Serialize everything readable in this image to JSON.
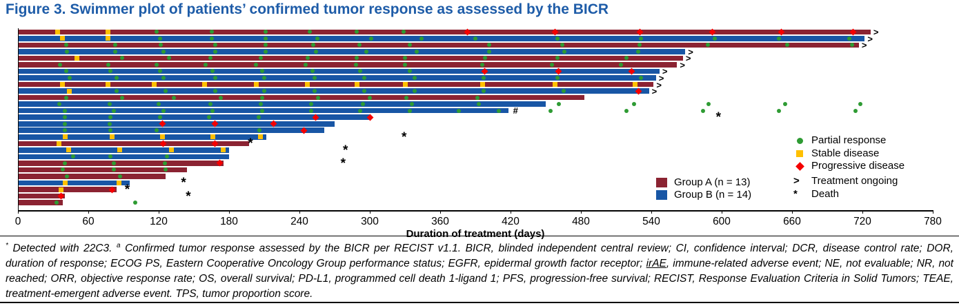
{
  "figure": {
    "title": "Figure 3. Swimmer plot of patients’ confirmed tumor response as assessed by the BICR",
    "title_color": "#1E5CA8"
  },
  "chart_data": {
    "type": "swimmer",
    "xlabel": "Duration of treatment (days)",
    "xlim": [
      0,
      780
    ],
    "xticks": [
      0,
      60,
      120,
      180,
      240,
      300,
      360,
      420,
      480,
      540,
      600,
      660,
      720,
      780
    ],
    "x_unit": "days",
    "marker_legend": [
      {
        "key": "pr",
        "label": "Partial response",
        "color": "#2E9B33",
        "shape": "circle"
      },
      {
        "key": "sd",
        "label": "Stable disease",
        "color": "#FFC000",
        "shape": "square"
      },
      {
        "key": "pd",
        "label": "Progressive disease",
        "color": "#F40000",
        "shape": "diamond"
      },
      {
        "key": "ongoing",
        "label": "Treatment ongoing",
        "glyph": ">"
      },
      {
        "key": "death",
        "label": "Death",
        "glyph": "*"
      }
    ],
    "group_legend": [
      {
        "key": "A",
        "label": "Group A (n = 13)",
        "color": "#8B2332"
      },
      {
        "key": "B",
        "label": "Group B (n = 14)",
        "color": "#1856A5"
      }
    ],
    "patients": [
      {
        "group": "A",
        "duration_days": 727,
        "ongoing": true,
        "markers": [
          [
            "sd",
            34
          ],
          [
            "sd",
            77
          ],
          [
            "pr",
            118
          ],
          [
            "pr",
            165
          ],
          [
            "pr",
            211
          ],
          [
            "pr",
            249
          ],
          [
            "pr",
            289
          ],
          [
            "pr",
            329
          ],
          [
            "pd",
            383
          ],
          [
            "pd",
            458
          ],
          [
            "pd",
            530
          ],
          [
            "pd",
            592
          ],
          [
            "pd",
            651
          ],
          [
            "pd",
            712
          ]
        ]
      },
      {
        "group": "B",
        "duration_days": 722,
        "ongoing": true,
        "markers": [
          [
            "sd",
            38
          ],
          [
            "sd",
            77
          ],
          [
            "pr",
            121
          ],
          [
            "pr",
            165
          ],
          [
            "pr",
            211
          ],
          [
            "pr",
            255
          ],
          [
            "pr",
            301
          ],
          [
            "pr",
            344
          ],
          [
            "pr",
            390
          ],
          [
            "pr",
            460
          ],
          [
            "pr",
            531
          ],
          [
            "pr",
            594
          ],
          [
            "pr",
            649
          ],
          [
            "pr",
            709
          ]
        ]
      },
      {
        "group": "A",
        "duration_days": 717,
        "ongoing": true,
        "markers": [
          [
            "pr",
            41
          ],
          [
            "pr",
            83
          ],
          [
            "pr",
            122
          ],
          [
            "pr",
            168
          ],
          [
            "pr",
            211
          ],
          [
            "pr",
            252
          ],
          [
            "pr",
            291
          ],
          [
            "pr",
            334
          ],
          [
            "pr",
            402
          ],
          [
            "pr",
            464
          ],
          [
            "pr",
            530
          ],
          [
            "pr",
            588
          ],
          [
            "pr",
            656
          ],
          [
            "pr",
            711
          ]
        ]
      },
      {
        "group": "B",
        "duration_days": 569,
        "ongoing": true,
        "markers": [
          [
            "pr",
            42
          ],
          [
            "pr",
            83
          ],
          [
            "pr",
            124
          ],
          [
            "pr",
            168
          ],
          [
            "pr",
            211
          ],
          [
            "pr",
            254
          ],
          [
            "pr",
            297
          ],
          [
            "pr",
            340
          ],
          [
            "pr",
            402
          ],
          [
            "pr",
            466
          ],
          [
            "pr",
            529
          ]
        ]
      },
      {
        "group": "A",
        "duration_days": 567,
        "ongoing": true,
        "markers": [
          [
            "sd",
            50
          ],
          [
            "pr",
            89
          ],
          [
            "pr",
            129
          ],
          [
            "pr",
            164
          ],
          [
            "pr",
            207
          ],
          [
            "pr",
            247
          ],
          [
            "pr",
            289
          ],
          [
            "pr",
            330
          ],
          [
            "pr",
            398
          ],
          [
            "pr",
            460
          ],
          [
            "pr",
            519
          ]
        ]
      },
      {
        "group": "A",
        "duration_days": 562,
        "ongoing": true,
        "markers": [
          [
            "pr",
            36
          ],
          [
            "pr",
            77
          ],
          [
            "pr",
            118
          ],
          [
            "pr",
            160
          ],
          [
            "pr",
            203
          ],
          [
            "pr",
            245
          ],
          [
            "pr",
            288
          ],
          [
            "pr",
            330
          ],
          [
            "pr",
            396
          ],
          [
            "pr",
            455
          ],
          [
            "pr",
            514
          ]
        ]
      },
      {
        "group": "B",
        "duration_days": 547,
        "ongoing": true,
        "markers": [
          [
            "pr",
            41
          ],
          [
            "pr",
            79
          ],
          [
            "pr",
            121
          ],
          [
            "pr",
            166
          ],
          [
            "pr",
            208
          ],
          [
            "pr",
            251
          ],
          [
            "pr",
            292
          ],
          [
            "pr",
            334
          ],
          [
            "pd",
            398
          ],
          [
            "pd",
            461
          ],
          [
            "pd",
            523
          ]
        ]
      },
      {
        "group": "B",
        "duration_days": 544,
        "ongoing": true,
        "markers": [
          [
            "pr",
            44
          ],
          [
            "pr",
            84
          ],
          [
            "pr",
            124
          ],
          [
            "pr",
            168
          ],
          [
            "pr",
            210
          ],
          [
            "pr",
            253
          ],
          [
            "pr",
            295
          ],
          [
            "pr",
            338
          ],
          [
            "pr",
            397
          ],
          [
            "pr",
            460
          ],
          [
            "pr",
            531
          ]
        ]
      },
      {
        "group": "A",
        "duration_days": 542,
        "ongoing": true,
        "markers": [
          [
            "sd",
            38
          ],
          [
            "sd",
            77
          ],
          [
            "sd",
            116
          ],
          [
            "sd",
            159
          ],
          [
            "sd",
            203
          ],
          [
            "sd",
            247
          ],
          [
            "sd",
            289
          ],
          [
            "sd",
            330
          ],
          [
            "sd",
            396
          ],
          [
            "sd",
            458
          ],
          [
            "sd",
            526
          ]
        ]
      },
      {
        "group": "B",
        "duration_days": 538,
        "ongoing": true,
        "markers": [
          [
            "sd",
            44
          ],
          [
            "pr",
            84
          ],
          [
            "pr",
            126
          ],
          [
            "pr",
            168
          ],
          [
            "pr",
            210
          ],
          [
            "pr",
            253
          ],
          [
            "pr",
            295
          ],
          [
            "pr",
            338
          ],
          [
            "pr",
            397
          ],
          [
            "pr",
            465
          ],
          [
            "pd",
            529
          ]
        ]
      },
      {
        "group": "A",
        "duration_days": 483,
        "ongoing": false,
        "markers": [
          [
            "pr",
            41
          ],
          [
            "pr",
            89
          ],
          [
            "pr",
            133
          ],
          [
            "pr",
            173
          ],
          [
            "pr",
            208
          ],
          [
            "pr",
            256
          ],
          [
            "pr",
            300
          ],
          [
            "pr",
            331
          ],
          [
            "pr",
            392
          ]
        ]
      },
      {
        "group": "B",
        "duration_days": 450,
        "ongoing": false,
        "markers": [
          [
            "pr",
            35
          ],
          [
            "pr",
            78
          ],
          [
            "pr",
            120
          ],
          [
            "pr",
            164
          ],
          [
            "pr",
            207
          ],
          [
            "pr",
            250
          ],
          [
            "pr",
            294
          ],
          [
            "pr",
            336
          ],
          [
            "pr",
            393
          ],
          [
            "pr",
            461
          ],
          [
            "pr",
            525
          ],
          [
            "pr",
            589
          ],
          [
            "pr",
            654
          ],
          [
            "pr",
            718
          ]
        ]
      },
      {
        "group": "B",
        "duration_days": 418,
        "ongoing": false,
        "hash": true,
        "markers": [
          [
            "pr",
            40
          ],
          [
            "pr",
            82
          ],
          [
            "pr",
            124
          ],
          [
            "pr",
            166
          ],
          [
            "pr",
            208
          ],
          [
            "pr",
            250
          ],
          [
            "pr",
            292
          ],
          [
            "pr",
            334
          ],
          [
            "pr",
            376
          ],
          [
            "pr",
            410
          ],
          [
            "pr",
            454
          ],
          [
            "pr",
            519
          ],
          [
            "pr",
            584
          ],
          [
            "pr",
            649
          ],
          [
            "pr",
            714
          ]
        ]
      },
      {
        "group": "B",
        "duration_days": 300,
        "ongoing": false,
        "markers": [
          [
            "pr",
            40
          ],
          [
            "pr",
            79
          ],
          [
            "pr",
            121
          ],
          [
            "pr",
            163
          ],
          [
            "pr",
            205
          ],
          [
            "pd",
            254
          ],
          [
            "pd",
            300
          ],
          [
            "death",
            598
          ]
        ]
      },
      {
        "group": "B",
        "duration_days": 270,
        "ongoing": false,
        "markers": [
          [
            "pr",
            40
          ],
          [
            "pr",
            78
          ],
          [
            "pd",
            123
          ],
          [
            "pd",
            168
          ],
          [
            "pd",
            218
          ]
        ]
      },
      {
        "group": "B",
        "duration_days": 261,
        "ongoing": false,
        "markers": [
          [
            "pr",
            40
          ],
          [
            "pr",
            79
          ],
          [
            "pr",
            118
          ],
          [
            "pr",
            206
          ],
          [
            "pd",
            244
          ]
        ]
      },
      {
        "group": "B",
        "duration_days": 212,
        "ongoing": false,
        "markers": [
          [
            "sd",
            40
          ],
          [
            "sd",
            80
          ],
          [
            "sd",
            123
          ],
          [
            "sd",
            166
          ],
          [
            "sd",
            207
          ],
          [
            "death",
            330
          ]
        ]
      },
      {
        "group": "A",
        "duration_days": 197,
        "ongoing": false,
        "markers": [
          [
            "sd",
            35
          ],
          [
            "pd",
            124
          ],
          [
            "pd",
            168
          ],
          [
            "death",
            199
          ]
        ]
      },
      {
        "group": "B",
        "duration_days": 180,
        "ongoing": false,
        "markers": [
          [
            "sd",
            43
          ],
          [
            "sd",
            87
          ],
          [
            "sd",
            131
          ],
          [
            "sd",
            175
          ],
          [
            "death",
            280
          ]
        ]
      },
      {
        "group": "B",
        "duration_days": 180,
        "ongoing": false,
        "markers": [
          [
            "pr",
            47
          ],
          [
            "pr",
            79
          ],
          [
            "pr",
            127
          ]
        ]
      },
      {
        "group": "A",
        "duration_days": 175,
        "ongoing": false,
        "markers": [
          [
            "pr",
            40
          ],
          [
            "pr",
            82
          ],
          [
            "pr",
            125
          ],
          [
            "pd",
            172
          ],
          [
            "death",
            278
          ]
        ]
      },
      {
        "group": "A",
        "duration_days": 144,
        "ongoing": false,
        "markers": [
          [
            "pr",
            38
          ],
          [
            "pr",
            82
          ],
          [
            "pr",
            126
          ]
        ]
      },
      {
        "group": "A",
        "duration_days": 126,
        "ongoing": false,
        "markers": [
          [
            "pr",
            42
          ],
          [
            "pr",
            87
          ]
        ]
      },
      {
        "group": "B",
        "duration_days": 95,
        "ongoing": false,
        "markers": [
          [
            "sd",
            40
          ],
          [
            "sd",
            86
          ],
          [
            "death",
            142
          ]
        ]
      },
      {
        "group": "A",
        "duration_days": 84,
        "ongoing": false,
        "markers": [
          [
            "sd",
            37
          ],
          [
            "pd",
            80
          ],
          [
            "death",
            94
          ]
        ]
      },
      {
        "group": "A",
        "duration_days": 40,
        "ongoing": false,
        "markers": [
          [
            "pd",
            37
          ],
          [
            "death",
            146
          ]
        ]
      },
      {
        "group": "A",
        "duration_days": 38,
        "ongoing": false,
        "markers": [
          [
            "pr",
            33
          ],
          [
            "pr",
            100
          ]
        ]
      }
    ]
  },
  "footnote": {
    "segments": [
      {
        "text": "*",
        "sup": true
      },
      {
        "text": " Detected with 22C3. "
      },
      {
        "text": "a",
        "sup": true
      },
      {
        "text": " Confirmed tumor response assessed by the BICR per RECIST v1.1. BICR, blinded independent central review; CI, confidence interval; DCR, disease control rate; DOR, duration of response; ECOG PS, Eastern Cooperative Oncology Group performance status; EGFR, epidermal growth factor receptor; "
      },
      {
        "text": "irAE",
        "underline": true
      },
      {
        "text": ", immune-related adverse event; NE, not evaluable; NR, not reached; ORR, objective response rate; OS, overall survival; PD-L1, programmed cell death 1-ligand 1; PFS, progression-free survival; RECIST, Response Evaluation Criteria in Solid Tumors; TEAE, treatment-emergent adverse event. TPS, tumor proportion score."
      }
    ]
  }
}
